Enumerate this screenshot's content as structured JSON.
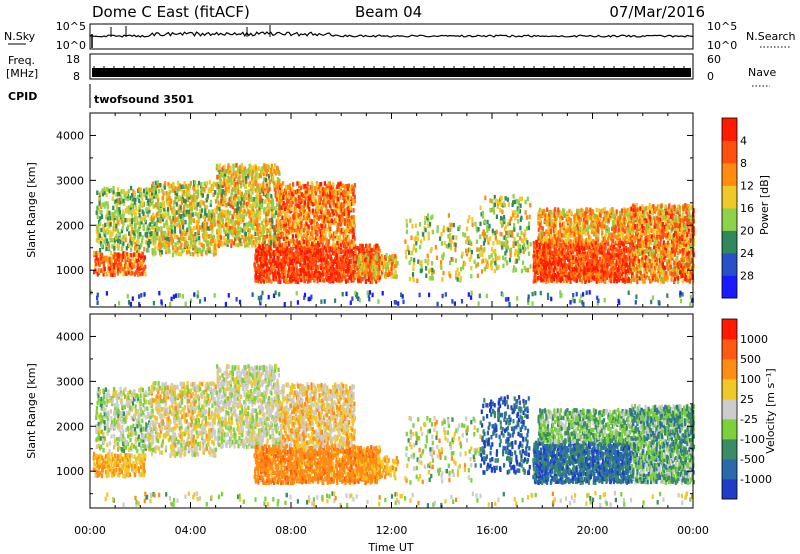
{
  "header": {
    "station": "Dome C East (fitACF)",
    "beam": "Beam 04",
    "date": "07/Mar/2016"
  },
  "top_panels": {
    "nsky_label": "N.Sky",
    "nsky_ticks": [
      "10^5",
      "10^0"
    ],
    "nsearch_label": "N.Search",
    "nsearch_ticks": [
      "10^5",
      "10^0"
    ],
    "freq_label_1": "Freq.",
    "freq_label_2": "[MHz]",
    "freq_ticks": [
      "18",
      "8"
    ],
    "nave_label": "Nave",
    "nave_ticks": [
      "60",
      "0"
    ],
    "cpid_label": "CPID",
    "cpid_value": "twofsound 3501"
  },
  "chart_data": [
    {
      "type": "heatmap",
      "title": "",
      "ylabel": "Slant Range [km]",
      "ylim": [
        180,
        4500
      ],
      "yticks": [
        1000,
        2000,
        3000,
        4000
      ],
      "xlim": [
        "00:00",
        "24:00"
      ],
      "colorbar": {
        "label": "Power [dB]",
        "ticks": [
          "4",
          "8",
          "12",
          "16",
          "20",
          "24",
          "28"
        ],
        "colors": [
          "#1a1aff",
          "#2850c8",
          "#2e8a5c",
          "#8cd24a",
          "#f0c828",
          "#ff8c10",
          "#ff5010",
          "#ff1a00"
        ]
      },
      "clusters": [
        {
          "t0": 0.1,
          "t1": 2.2,
          "r0": 850,
          "r1": 1350,
          "dens": 0.55,
          "v0": 0.55,
          "v1": 1.0
        },
        {
          "t0": 0.2,
          "t1": 2.4,
          "r0": 1400,
          "r1": 2800,
          "dens": 0.35,
          "v0": 0.25,
          "v1": 0.65
        },
        {
          "t0": 2.4,
          "t1": 5.0,
          "r0": 1300,
          "r1": 2900,
          "dens": 0.45,
          "v0": 0.3,
          "v1": 0.75
        },
        {
          "t0": 5.0,
          "t1": 7.5,
          "r0": 1500,
          "r1": 3300,
          "dens": 0.5,
          "v0": 0.35,
          "v1": 0.8
        },
        {
          "t0": 6.5,
          "t1": 11.5,
          "r0": 700,
          "r1": 1500,
          "dens": 0.7,
          "v0": 0.7,
          "v1": 1.0
        },
        {
          "t0": 7.5,
          "t1": 10.5,
          "r0": 1500,
          "r1": 2900,
          "dens": 0.55,
          "v0": 0.5,
          "v1": 0.95
        },
        {
          "t0": 10.5,
          "t1": 12.2,
          "r0": 800,
          "r1": 1300,
          "dens": 0.45,
          "v0": 0.4,
          "v1": 0.8
        },
        {
          "t0": 12.5,
          "t1": 15.5,
          "r0": 700,
          "r1": 2200,
          "dens": 0.12,
          "v0": 0.3,
          "v1": 0.7
        },
        {
          "t0": 15.5,
          "t1": 17.5,
          "r0": 900,
          "r1": 2600,
          "dens": 0.2,
          "v0": 0.3,
          "v1": 0.7
        },
        {
          "t0": 17.6,
          "t1": 21.5,
          "r0": 700,
          "r1": 1600,
          "dens": 0.75,
          "v0": 0.65,
          "v1": 1.0
        },
        {
          "t0": 17.8,
          "t1": 21.5,
          "r0": 1600,
          "r1": 2300,
          "dens": 0.55,
          "v0": 0.45,
          "v1": 0.85
        },
        {
          "t0": 21.5,
          "t1": 24.0,
          "r0": 700,
          "r1": 2400,
          "dens": 0.65,
          "v0": 0.45,
          "v1": 0.95
        },
        {
          "t0": 0.0,
          "t1": 24.0,
          "r0": 200,
          "r1": 450,
          "dens": 0.08,
          "v0": 0.0,
          "v1": 0.5
        }
      ]
    },
    {
      "type": "heatmap",
      "title": "",
      "ylabel": "Slant Range [km]",
      "xlabel": "Time UT",
      "ylim": [
        180,
        4500
      ],
      "yticks": [
        1000,
        2000,
        3000,
        4000
      ],
      "xticks": [
        "00:00",
        "04:00",
        "08:00",
        "12:00",
        "16:00",
        "20:00",
        "00:00"
      ],
      "xlim": [
        "00:00",
        "24:00"
      ],
      "colorbar": {
        "label": "Velocity [m s⁻¹]",
        "ticks": [
          "1000",
          "500",
          "100",
          "25",
          "-25",
          "-100",
          "-500",
          "-1000"
        ],
        "colors": [
          "#1e3cc8",
          "#2a6aaa",
          "#3a8c64",
          "#7cd03c",
          "#cccccc",
          "#f0c828",
          "#ff8c14",
          "#ff5a10",
          "#ff1a00"
        ]
      },
      "clusters": [
        {
          "t0": 0.1,
          "t1": 2.2,
          "r0": 850,
          "r1": 1350,
          "dens": 0.55,
          "v0": 0.55,
          "v1": 0.75
        },
        {
          "t0": 0.2,
          "t1": 2.4,
          "r0": 1400,
          "r1": 2800,
          "dens": 0.35,
          "v0": 0.3,
          "v1": 0.6
        },
        {
          "t0": 2.4,
          "t1": 5.0,
          "r0": 1300,
          "r1": 2900,
          "dens": 0.45,
          "v0": 0.4,
          "v1": 0.7
        },
        {
          "t0": 5.0,
          "t1": 7.5,
          "r0": 1500,
          "r1": 3300,
          "dens": 0.5,
          "v0": 0.4,
          "v1": 0.6
        },
        {
          "t0": 6.5,
          "t1": 11.5,
          "r0": 700,
          "r1": 1500,
          "dens": 0.7,
          "v0": 0.65,
          "v1": 0.8
        },
        {
          "t0": 7.5,
          "t1": 10.5,
          "r0": 1500,
          "r1": 2900,
          "dens": 0.55,
          "v0": 0.45,
          "v1": 0.75
        },
        {
          "t0": 10.5,
          "t1": 12.2,
          "r0": 800,
          "r1": 1300,
          "dens": 0.45,
          "v0": 0.6,
          "v1": 0.75
        },
        {
          "t0": 12.5,
          "t1": 15.5,
          "r0": 700,
          "r1": 2200,
          "dens": 0.12,
          "v0": 0.3,
          "v1": 0.7
        },
        {
          "t0": 15.5,
          "t1": 17.5,
          "r0": 900,
          "r1": 2600,
          "dens": 0.2,
          "v0": 0.0,
          "v1": 0.3
        },
        {
          "t0": 17.6,
          "t1": 21.5,
          "r0": 700,
          "r1": 1600,
          "dens": 0.75,
          "v0": 0.05,
          "v1": 0.3
        },
        {
          "t0": 17.8,
          "t1": 21.5,
          "r0": 1600,
          "r1": 2300,
          "dens": 0.55,
          "v0": 0.25,
          "v1": 0.5
        },
        {
          "t0": 21.5,
          "t1": 24.0,
          "r0": 700,
          "r1": 2400,
          "dens": 0.65,
          "v0": 0.15,
          "v1": 0.5
        },
        {
          "t0": 0.0,
          "t1": 24.0,
          "r0": 200,
          "r1": 450,
          "dens": 0.08,
          "v0": 0.3,
          "v1": 0.7
        }
      ]
    }
  ]
}
